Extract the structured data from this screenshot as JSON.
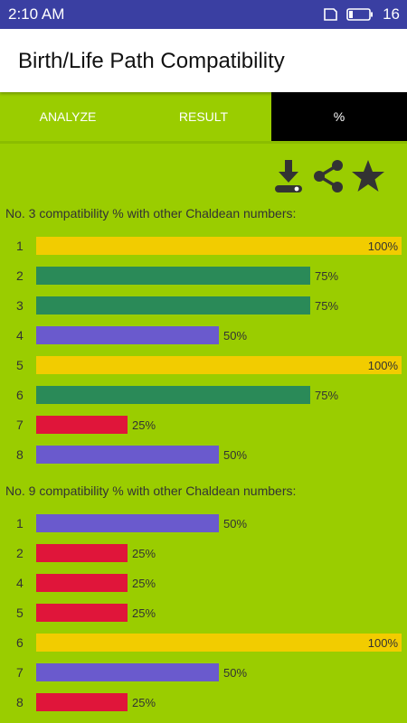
{
  "status": {
    "time": "2:10 AM",
    "battery": "16"
  },
  "app": {
    "title": "Birth/Life Path Compatibility"
  },
  "tabs": [
    {
      "label": "ANALYZE",
      "active": false
    },
    {
      "label": "RESULT",
      "active": false
    },
    {
      "label": "%",
      "active": true
    }
  ],
  "toolbar": {
    "icons": [
      "download-icon",
      "share-icon",
      "star-icon"
    ]
  },
  "colors": {
    "full": "#f2cc00",
    "high": "#2a8a58",
    "mid": "#6a5acd",
    "low": "#e0153a"
  },
  "sections": [
    {
      "title": "No. 3 compatibility % with other Chaldean numbers:",
      "rows": [
        {
          "num": "1",
          "value": 100,
          "label": "100%"
        },
        {
          "num": "2",
          "value": 75,
          "label": "75%"
        },
        {
          "num": "3",
          "value": 75,
          "label": "75%"
        },
        {
          "num": "4",
          "value": 50,
          "label": "50%"
        },
        {
          "num": "5",
          "value": 100,
          "label": "100%"
        },
        {
          "num": "6",
          "value": 75,
          "label": "75%"
        },
        {
          "num": "7",
          "value": 25,
          "label": "25%"
        },
        {
          "num": "8",
          "value": 50,
          "label": "50%"
        }
      ]
    },
    {
      "title": "No. 9 compatibility % with other Chaldean numbers:",
      "rows": [
        {
          "num": "1",
          "value": 50,
          "label": "50%"
        },
        {
          "num": "2",
          "value": 25,
          "label": "25%"
        },
        {
          "num": "4",
          "value": 25,
          "label": "25%"
        },
        {
          "num": "5",
          "value": 25,
          "label": "25%"
        },
        {
          "num": "6",
          "value": 100,
          "label": "100%"
        },
        {
          "num": "7",
          "value": 50,
          "label": "50%"
        },
        {
          "num": "8",
          "value": 25,
          "label": "25%"
        }
      ]
    }
  ]
}
